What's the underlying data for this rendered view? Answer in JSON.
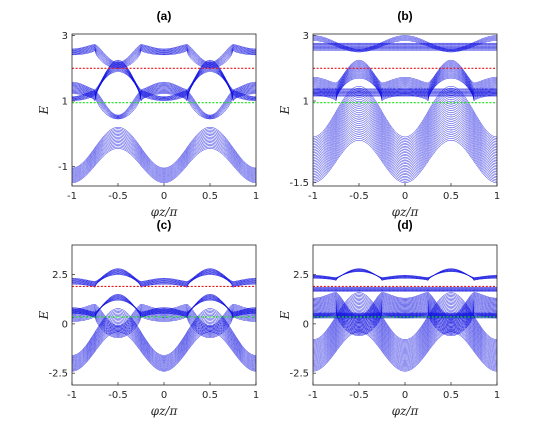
{
  "colors": {
    "band": "#1010e0",
    "ref_red": "#e8141c",
    "ref_green": "#10e010",
    "axis": "#262626"
  },
  "chart_data": [
    {
      "panel": "(a)",
      "type": "line",
      "xlabel": "φz/π",
      "ylabel": "E",
      "xlim": [
        -1,
        1
      ],
      "ylim": [
        -1.6,
        3.05
      ],
      "xticks": [
        "-1",
        "-0.5",
        "0",
        "0.5",
        "1"
      ],
      "yticks": [
        {
          "v": -1,
          "label": "-1"
        },
        {
          "v": 1,
          "label": "1"
        },
        {
          "v": 3,
          "label": "3"
        }
      ],
      "reference_lines": [
        {
          "y": 2.0,
          "color": "red"
        },
        {
          "y": 0.95,
          "color": "green"
        }
      ],
      "bands": [
        {
          "base": -1.5,
          "amp": 1.05,
          "period": 1.0,
          "phase": 0,
          "spread": 0.45,
          "lines": 16,
          "shape": "cos"
        },
        {
          "base": 1.0,
          "amp": 0.9,
          "period": 1.0,
          "phase": 0.5,
          "spread": 0.35,
          "lines": 14,
          "shape": "notch"
        },
        {
          "base": 1.2,
          "amp": -0.75,
          "period": 1.0,
          "phase": 0.5,
          "spread": 0.12,
          "lines": 8,
          "shape": "notch"
        },
        {
          "base": 2.55,
          "amp": -0.55,
          "period": 1.0,
          "phase": 0.5,
          "spread": 0.18,
          "lines": 10,
          "shape": "notch"
        }
      ]
    },
    {
      "panel": "(b)",
      "type": "line",
      "xlabel": "φz/π",
      "ylabel": "E",
      "xlim": [
        -1,
        1
      ],
      "ylim": [
        -1.6,
        3.05
      ],
      "xticks": [
        "-1",
        "-0.5",
        "0",
        "0.5",
        "1"
      ],
      "yticks": [
        {
          "v": -1.5,
          "label": "-1.5"
        },
        {
          "v": 1,
          "label": "1"
        },
        {
          "v": 3,
          "label": "3"
        }
      ],
      "reference_lines": [
        {
          "y": 2.0,
          "color": "red"
        },
        {
          "y": 0.95,
          "color": "green"
        }
      ],
      "bands": [
        {
          "base": -1.5,
          "amp": 1.3,
          "period": 1.0,
          "phase": 0,
          "spread": 1.4,
          "lines": 30,
          "shape": "cos"
        },
        {
          "base": 1.0,
          "amp": 0.7,
          "period": 1.0,
          "phase": 0.5,
          "spread": 0.55,
          "lines": 18,
          "shape": "notch"
        },
        {
          "base": 1.15,
          "amp": 0.0,
          "period": 1.0,
          "phase": 0,
          "spread": 0.22,
          "lines": 10,
          "shape": "flat"
        },
        {
          "base": 2.55,
          "amp": 0.0,
          "period": 1.0,
          "phase": 0,
          "spread": 0.22,
          "lines": 10,
          "shape": "flat"
        },
        {
          "base": 2.85,
          "amp": -0.35,
          "period": 1.0,
          "phase": 0,
          "spread": 0.15,
          "lines": 6,
          "shape": "cos"
        }
      ]
    },
    {
      "panel": "(c)",
      "type": "line",
      "xlabel": "φz/π",
      "ylabel": "E",
      "xlim": [
        -1,
        1
      ],
      "ylim": [
        -3.1,
        4.0
      ],
      "xticks": [
        "-1",
        "-0.5",
        "0",
        "0.5",
        "1"
      ],
      "yticks": [
        {
          "v": -2.5,
          "label": "-2.5"
        },
        {
          "v": 0,
          "label": "0"
        },
        {
          "v": 2.5,
          "label": "2.5"
        }
      ],
      "reference_lines": [
        {
          "y": 1.9,
          "color": "red"
        },
        {
          "y": 0.35,
          "color": "green"
        }
      ],
      "bands": [
        {
          "base": -2.4,
          "amp": 2.0,
          "period": 1.0,
          "phase": 0,
          "spread": 0.8,
          "lines": 18,
          "shape": "cos"
        },
        {
          "base": 0.4,
          "amp": -1.1,
          "period": 1.0,
          "phase": 0.5,
          "spread": 0.6,
          "lines": 14,
          "shape": "notch"
        },
        {
          "base": 0.3,
          "amp": 0.9,
          "period": 1.0,
          "phase": 0.5,
          "spread": 0.3,
          "lines": 10,
          "shape": "notch"
        },
        {
          "base": 1.85,
          "amp": 0.65,
          "period": 1.0,
          "phase": 0.5,
          "spread": 0.3,
          "lines": 10,
          "shape": "notch"
        }
      ]
    },
    {
      "panel": "(d)",
      "type": "line",
      "xlabel": "φz/π",
      "ylabel": "E",
      "xlim": [
        -1,
        1
      ],
      "ylim": [
        -3.1,
        4.0
      ],
      "xticks": [
        "-1",
        "-0.5",
        "0",
        "0.5",
        "1"
      ],
      "yticks": [
        {
          "v": -2.5,
          "label": "-2.5"
        },
        {
          "v": 0,
          "label": "0"
        },
        {
          "v": 2.5,
          "label": "2.5"
        }
      ],
      "reference_lines": [
        {
          "y": 1.9,
          "color": "red"
        },
        {
          "y": 0.35,
          "color": "green"
        }
      ],
      "bands": [
        {
          "base": -2.4,
          "amp": 2.0,
          "period": 1.0,
          "phase": 0,
          "spread": 1.6,
          "lines": 30,
          "shape": "cos"
        },
        {
          "base": 0.6,
          "amp": -1.2,
          "period": 1.0,
          "phase": 0.5,
          "spread": 1.0,
          "lines": 24,
          "shape": "notch"
        },
        {
          "base": 0.3,
          "amp": 0.0,
          "period": 1.0,
          "phase": 0,
          "spread": 0.25,
          "lines": 10,
          "shape": "flat"
        },
        {
          "base": 1.65,
          "amp": 0.0,
          "period": 1.0,
          "phase": 0,
          "spread": 0.2,
          "lines": 8,
          "shape": "flat"
        },
        {
          "base": 2.2,
          "amp": 0.45,
          "period": 1.0,
          "phase": 0.5,
          "spread": 0.15,
          "lines": 8,
          "shape": "notch"
        }
      ]
    }
  ]
}
